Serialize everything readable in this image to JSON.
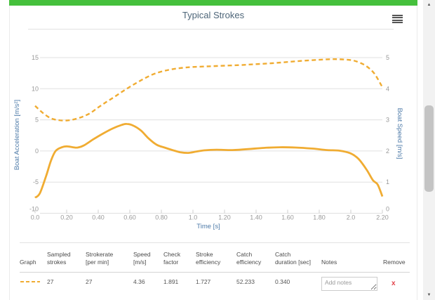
{
  "chart_data": {
    "type": "line",
    "title": "Typical Strokes",
    "x_label": "Time [s]",
    "y_left_label": "Boat Acceleration [m/s²]",
    "y_right_label": "Boat Speed [m/s]",
    "xlim": [
      0,
      2.2
    ],
    "y_left_lim": [
      -10,
      15
    ],
    "y_right_lim": [
      0,
      5
    ],
    "x_ticks": [
      "0.0",
      "0.20",
      "0.40",
      "0.60",
      "0.80",
      "1.0",
      "1.20",
      "1.40",
      "1.60",
      "1.80",
      "2.0",
      "2.20"
    ],
    "y_left_ticks": [
      "15",
      "10",
      "5",
      "0",
      "-5",
      "-10"
    ],
    "y_right_ticks": [
      "5",
      "4",
      "3",
      "2",
      "1",
      "0"
    ],
    "grid": "horizontal-only",
    "legend": "none",
    "line_color": "#F0AC32",
    "series": [
      {
        "name": "Boat Speed",
        "axis": "right",
        "style": "dashed",
        "points": [
          [
            0,
            3.45
          ],
          [
            0.05,
            3.22
          ],
          [
            0.1,
            3.05
          ],
          [
            0.15,
            2.99
          ],
          [
            0.2,
            2.98
          ],
          [
            0.25,
            3.02
          ],
          [
            0.3,
            3.1
          ],
          [
            0.35,
            3.22
          ],
          [
            0.4,
            3.4
          ],
          [
            0.45,
            3.57
          ],
          [
            0.5,
            3.73
          ],
          [
            0.55,
            3.9
          ],
          [
            0.6,
            4.06
          ],
          [
            0.65,
            4.21
          ],
          [
            0.7,
            4.35
          ],
          [
            0.75,
            4.47
          ],
          [
            0.8,
            4.55
          ],
          [
            0.85,
            4.61
          ],
          [
            0.9,
            4.65
          ],
          [
            0.95,
            4.68
          ],
          [
            1,
            4.7
          ],
          [
            1.1,
            4.72
          ],
          [
            1.2,
            4.74
          ],
          [
            1.3,
            4.76
          ],
          [
            1.4,
            4.79
          ],
          [
            1.5,
            4.82
          ],
          [
            1.6,
            4.86
          ],
          [
            1.7,
            4.9
          ],
          [
            1.8,
            4.93
          ],
          [
            1.9,
            4.95
          ],
          [
            2,
            4.92
          ],
          [
            2.05,
            4.85
          ],
          [
            2.1,
            4.72
          ],
          [
            2.15,
            4.48
          ],
          [
            2.2,
            4.05
          ]
        ]
      },
      {
        "name": "Boat Acceleration",
        "axis": "left",
        "style": "solid",
        "points": [
          [
            0,
            -7.5
          ],
          [
            0.03,
            -6.8
          ],
          [
            0.07,
            -4
          ],
          [
            0.1,
            -1.6
          ],
          [
            0.13,
            0
          ],
          [
            0.17,
            0.6
          ],
          [
            0.2,
            0.75
          ],
          [
            0.24,
            0.6
          ],
          [
            0.27,
            0.55
          ],
          [
            0.31,
            0.9
          ],
          [
            0.37,
            1.9
          ],
          [
            0.43,
            2.8
          ],
          [
            0.49,
            3.6
          ],
          [
            0.55,
            4.2
          ],
          [
            0.58,
            4.35
          ],
          [
            0.62,
            4.1
          ],
          [
            0.67,
            3.3
          ],
          [
            0.72,
            2
          ],
          [
            0.77,
            1
          ],
          [
            0.82,
            0.55
          ],
          [
            0.87,
            0.15
          ],
          [
            0.92,
            -0.2
          ],
          [
            0.97,
            -0.3
          ],
          [
            1.02,
            -0.1
          ],
          [
            1.07,
            0.1
          ],
          [
            1.15,
            0.2
          ],
          [
            1.25,
            0.15
          ],
          [
            1.35,
            0.3
          ],
          [
            1.45,
            0.5
          ],
          [
            1.55,
            0.6
          ],
          [
            1.65,
            0.55
          ],
          [
            1.75,
            0.4
          ],
          [
            1.85,
            0.15
          ],
          [
            1.93,
            0.05
          ],
          [
            2,
            -0.4
          ],
          [
            2.05,
            -1.3
          ],
          [
            2.1,
            -3
          ],
          [
            2.14,
            -4.7
          ],
          [
            2.17,
            -5.4
          ],
          [
            2.2,
            -7.3
          ]
        ]
      }
    ]
  },
  "table": {
    "columns": [
      {
        "line1": "",
        "line2": "Graph"
      },
      {
        "line1": "Sampled",
        "line2": "strokes"
      },
      {
        "line1": "Strokerate",
        "line2": "[per min]"
      },
      {
        "line1": "Speed",
        "line2": "[m/s]"
      },
      {
        "line1": "Check",
        "line2": "factor"
      },
      {
        "line1": "Stroke",
        "line2": "efficiency"
      },
      {
        "line1": "Catch",
        "line2": "efficiency"
      },
      {
        "line1": "Catch",
        "line2": "duration [sec]"
      },
      {
        "line1": "",
        "line2": "Notes"
      },
      {
        "line1": "",
        "line2": "Remove"
      }
    ],
    "row": {
      "graph_swatch": "dashed-gold-line",
      "sampled_strokes": "27",
      "strokerate": "27",
      "speed": "4.36",
      "check_factor": "1.891",
      "stroke_efficiency": "1.727",
      "catch_efficiency": "52.233",
      "catch_duration": "0.340",
      "notes_placeholder": "Add notes",
      "remove": "x"
    }
  },
  "scrollbar": {
    "up_glyph": "▲",
    "down_glyph": "▼"
  },
  "colors": {
    "accent_green": "#45C03C",
    "line_gold": "#F0AC32",
    "axis_title_blue": "#4D7AA8",
    "tick_gray": "#999999",
    "remove_red": "#E2434B",
    "title_slate": "#4D6578"
  }
}
